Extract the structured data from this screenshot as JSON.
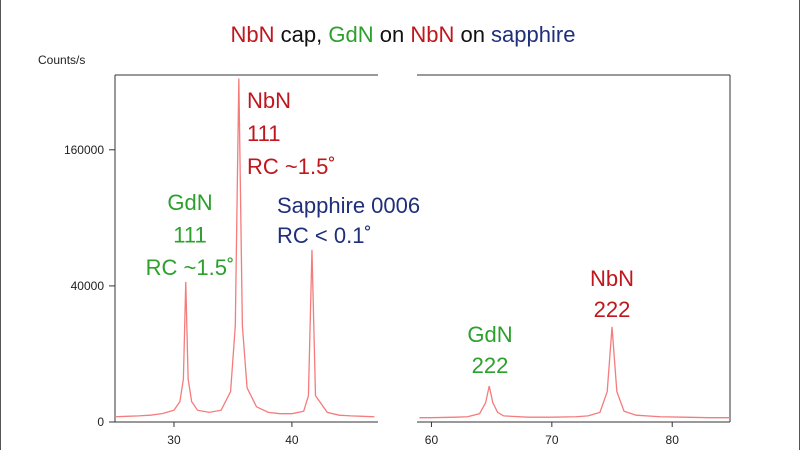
{
  "chart_data": {
    "type": "line",
    "title_parts": [
      {
        "text": "NbN",
        "color": "#c0161d"
      },
      {
        "text": " cap, ",
        "color": "#111111"
      },
      {
        "text": "GdN",
        "color": "#2ca02c"
      },
      {
        "text": " on ",
        "color": "#111111"
      },
      {
        "text": "NbN",
        "color": "#c0161d"
      },
      {
        "text": " on ",
        "color": "#111111"
      },
      {
        "text": "sapphire",
        "color": "#1f2f7a"
      }
    ],
    "ylabel": "Counts/s",
    "yscale": "sqrt",
    "ylim": [
      0,
      260000
    ],
    "yticks": [
      0,
      40000,
      160000
    ],
    "panels": [
      {
        "xlim": [
          25,
          47.3
        ],
        "xticks": [
          30,
          40
        ],
        "series": [
          {
            "color": "#f47c7c",
            "x": [
              25,
              26,
              27,
              28,
              29,
              30,
              30.5,
              30.8,
              31.0,
              31.2,
              31.5,
              32,
              33,
              34,
              34.8,
              35.2,
              35.5,
              35.8,
              36.2,
              37,
              38,
              39,
              40,
              41,
              41.4,
              41.7,
              42,
              43,
              44,
              45,
              46,
              47
            ],
            "values": [
              60,
              70,
              80,
              100,
              150,
              300,
              900,
              4000,
              42400,
              4000,
              900,
              300,
              200,
              300,
              2000,
              20000,
              255000,
              20000,
              2500,
              500,
              200,
              150,
              150,
              250,
              1500,
              64000,
              1500,
              200,
              100,
              80,
              70,
              60
            ]
          }
        ]
      },
      {
        "xlim": [
          58.8,
          84.8
        ],
        "xticks": [
          60,
          70,
          80
        ],
        "series": [
          {
            "color": "#f47c7c",
            "x": [
              59,
              60,
              62,
              63,
              64,
              64.5,
              64.8,
              65.1,
              65.5,
              66,
              68,
              70,
              72,
              73,
              74,
              74.6,
              75.0,
              75.4,
              76,
              77,
              79,
              81,
              83,
              84.8
            ],
            "values": [
              40,
              40,
              50,
              60,
              150,
              800,
              2800,
              800,
              200,
              80,
              50,
              50,
              60,
              80,
              200,
              2000,
              19500,
              2000,
              250,
              100,
              60,
              50,
              40,
              40
            ]
          }
        ]
      }
    ],
    "annotations": [
      {
        "lines": [
          "GdN",
          "111",
          "RC ~1.5˚"
        ],
        "color": "#2ca02c"
      },
      {
        "lines": [
          "NbN",
          "111",
          "RC ~1.5˚"
        ],
        "color": "#c0161d"
      },
      {
        "lines": [
          "Sapphire 0006",
          "RC < 0.1˚"
        ],
        "color": "#1f2f7a"
      },
      {
        "lines": [
          "GdN",
          "222"
        ],
        "color": "#2ca02c"
      },
      {
        "lines": [
          "NbN",
          "222"
        ],
        "color": "#c0161d"
      }
    ]
  }
}
